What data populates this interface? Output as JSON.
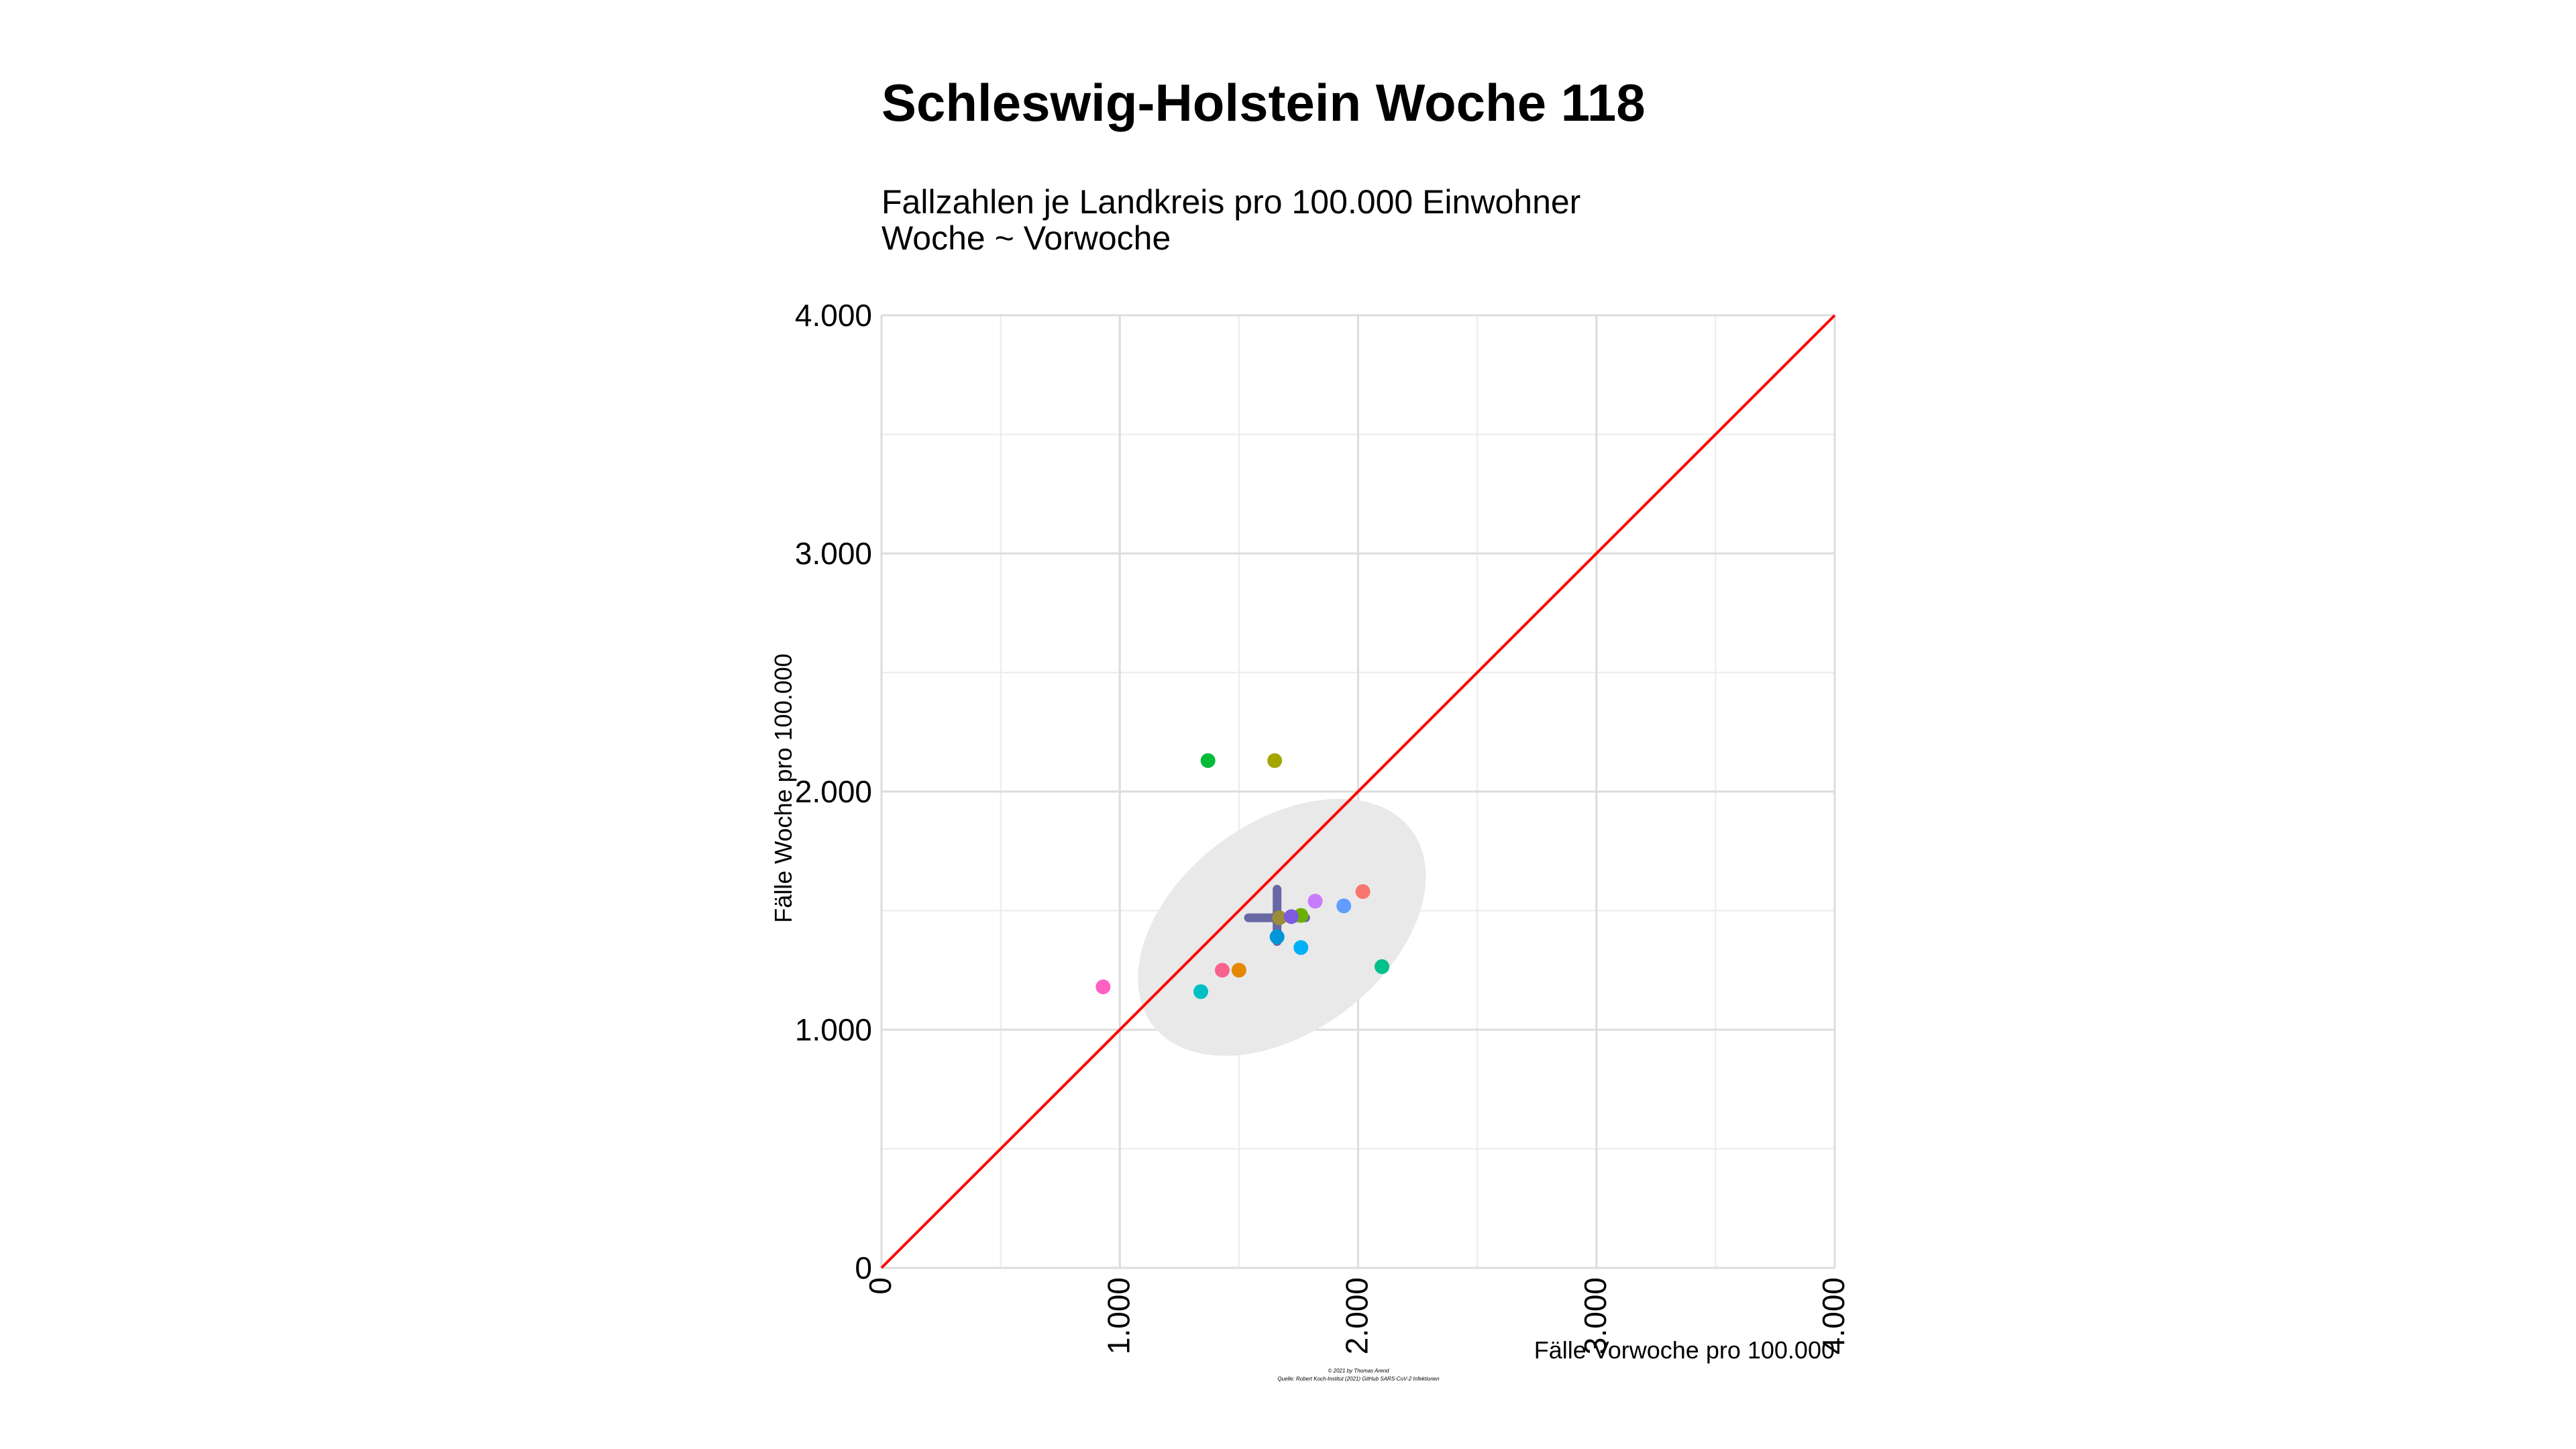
{
  "chart_data": {
    "type": "scatter",
    "title": "Schleswig-Holstein Woche 118",
    "subtitle_lines": [
      "Fallzahlen je Landkreis pro 100.000 Einwohner",
      "Woche ~ Vorwoche"
    ],
    "xlabel": "Fälle Vorwoche pro 100.000",
    "ylabel": "Fälle Woche pro 100.000",
    "xlim": [
      0,
      4000
    ],
    "ylim": [
      0,
      4000
    ],
    "x_ticks": [
      0,
      1000,
      2000,
      3000,
      4000
    ],
    "y_ticks": [
      0,
      1000,
      2000,
      3000,
      4000
    ],
    "x_tick_labels": [
      "0",
      "1.000",
      "2.000",
      "3.000",
      "4.000"
    ],
    "y_tick_labels": [
      "0",
      "1.000",
      "2.000",
      "3.000",
      "4.000"
    ],
    "grid": true,
    "reference_line": {
      "from": [
        0,
        0
      ],
      "to": [
        4000,
        4000
      ],
      "color": "#ff0000"
    },
    "mean_cross": {
      "x": 1660,
      "y": 1470,
      "x_spread": [
        1540,
        1780
      ],
      "y_spread": [
        1370,
        1590
      ],
      "color": "#3c3c8c"
    },
    "ellipse": {
      "cx": 1680,
      "cy": 1430,
      "rx": 680,
      "ry": 440,
      "angle": 37,
      "color": "#e9e9e9"
    },
    "points": [
      {
        "x": 2020,
        "y": 1580,
        "color": "#f8766d"
      },
      {
        "x": 1500,
        "y": 1250,
        "color": "#e58700"
      },
      {
        "x": 1650,
        "y": 2130,
        "color": "#a3a500"
      },
      {
        "x": 1760,
        "y": 1480,
        "color": "#6bb100"
      },
      {
        "x": 1370,
        "y": 2130,
        "color": "#00ba38"
      },
      {
        "x": 2100,
        "y": 1265,
        "color": "#00c08b"
      },
      {
        "x": 1340,
        "y": 1160,
        "color": "#00bfc4"
      },
      {
        "x": 1760,
        "y": 1345,
        "color": "#00b0f6"
      },
      {
        "x": 1660,
        "y": 1390,
        "color": "#0094d8"
      },
      {
        "x": 1940,
        "y": 1520,
        "color": "#619cff"
      },
      {
        "x": 1820,
        "y": 1540,
        "color": "#c77cff"
      },
      {
        "x": 930,
        "y": 1180,
        "color": "#ff61c3"
      },
      {
        "x": 1430,
        "y": 1250,
        "color": "#f8628f"
      },
      {
        "x": 1670,
        "y": 1470,
        "color": "#9c8d3a"
      },
      {
        "x": 1720,
        "y": 1475,
        "color": "#7e5ae0"
      }
    ],
    "caption_lines": [
      "© 2021 by Thomas Arend",
      "Quelle: Robert Koch-Institut (2021) GitHub SARS-CoV-2 Infektionen"
    ]
  }
}
